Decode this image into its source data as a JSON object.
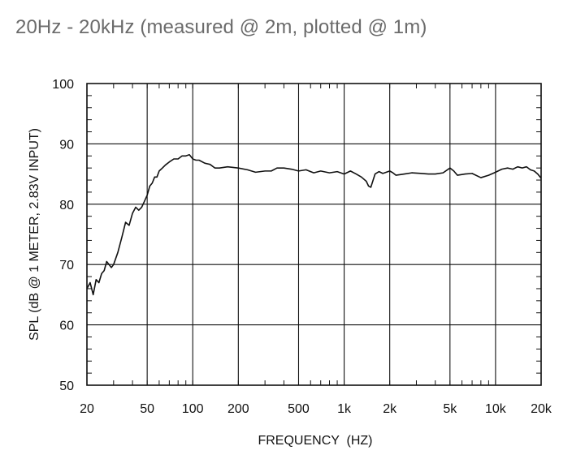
{
  "caption": "20Hz - 20kHz (measured @ 2m, plotted @ 1m)",
  "chart_data": {
    "type": "line",
    "title": "",
    "xlabel": "FREQUENCY  (HZ)",
    "ylabel": "SPL (dB @ 1 METER, 2.83V INPUT)",
    "x_scale": "log",
    "xlim": [
      20,
      20000
    ],
    "ylim": [
      50,
      100
    ],
    "grid": true,
    "x_ticks": [
      {
        "value": 20,
        "label": "20"
      },
      {
        "value": 50,
        "label": "50"
      },
      {
        "value": 100,
        "label": "100"
      },
      {
        "value": 200,
        "label": "200"
      },
      {
        "value": 500,
        "label": "500"
      },
      {
        "value": 1000,
        "label": "1k"
      },
      {
        "value": 2000,
        "label": "2k"
      },
      {
        "value": 5000,
        "label": "5k"
      },
      {
        "value": 10000,
        "label": "10k"
      },
      {
        "value": 20000,
        "label": "20k"
      }
    ],
    "y_ticks": [
      50,
      60,
      70,
      80,
      90,
      100
    ],
    "line_color": "#111111",
    "series": [
      {
        "x": [
          20,
          21,
          22,
          23,
          24,
          25,
          26,
          27,
          28,
          29,
          30,
          32,
          34,
          36,
          38,
          40,
          42,
          44,
          46,
          48,
          50,
          52,
          54,
          56,
          58,
          60,
          63,
          66,
          70,
          75,
          80,
          85,
          90,
          95,
          100,
          105,
          110,
          120,
          130,
          140,
          150,
          170,
          200,
          230,
          260,
          300,
          330,
          360,
          400,
          450,
          500,
          560,
          630,
          700,
          800,
          900,
          1000,
          1100,
          1200,
          1300,
          1400,
          1450,
          1500,
          1600,
          1700,
          1800,
          2000,
          2100,
          2200,
          2500,
          2800,
          3200,
          3600,
          4000,
          4500,
          5000,
          5300,
          5600,
          6300,
          7000,
          8000,
          9000,
          10000,
          11000,
          12000,
          13000,
          14000,
          15000,
          16000,
          17000,
          18000,
          19000,
          20000
        ],
        "y": [
          66,
          67,
          65,
          67.5,
          67,
          68.5,
          69,
          70.5,
          70,
          69.5,
          70,
          72,
          74.5,
          77,
          76.5,
          78.5,
          79.5,
          79,
          79.5,
          80.5,
          81.5,
          83,
          83.5,
          84.5,
          84.5,
          85.5,
          86,
          86.5,
          87,
          87.5,
          87.5,
          88,
          88,
          88.2,
          87.5,
          87.3,
          87.3,
          86.8,
          86.6,
          86,
          86,
          86.2,
          86,
          85.7,
          85.3,
          85.5,
          85.5,
          86,
          86,
          85.8,
          85.5,
          85.7,
          85.2,
          85.5,
          85.2,
          85.4,
          85,
          85.5,
          85,
          84.5,
          83.8,
          83,
          82.8,
          85,
          85.4,
          85.1,
          85.5,
          85.2,
          84.8,
          85,
          85.2,
          85.1,
          85,
          85,
          85.2,
          86,
          85.5,
          84.8,
          85,
          85.1,
          84.4,
          84.8,
          85.3,
          85.8,
          86,
          85.8,
          86.2,
          86,
          86.2,
          85.7,
          85.5,
          85,
          84.3
        ]
      }
    ]
  }
}
